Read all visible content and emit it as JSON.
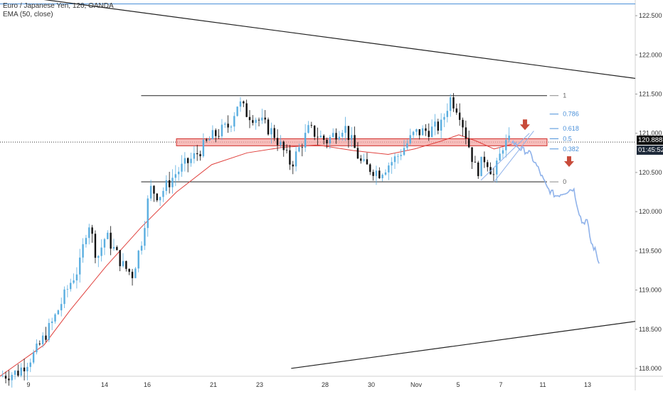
{
  "legend": {
    "symbol": "Euro / Japanese Yen, 120, OANDA",
    "indicator": "EMA (50, close)"
  },
  "price_tag": {
    "last": "120.888",
    "countdown": "01:45:52",
    "last_value": 120.888
  },
  "colors": {
    "up_candle": "#5aaee0",
    "down_candle": "#111111",
    "ema": "#e0413d",
    "projection": "#8fb2ea",
    "zone_fill": "#f4a5a3",
    "zone_border": "#d1302d",
    "arrow": "#c84b3a",
    "fib": "#4a90d9",
    "tag_bg": "#111111",
    "countdown_bg": "#1e2a3a"
  },
  "chart_data": {
    "type": "candlestick",
    "title": "Euro / Japanese Yen, 120, OANDA",
    "ylim": [
      117.9,
      122.7
    ],
    "x_tick_labels": [
      "9",
      "14",
      "16",
      "21",
      "23",
      "28",
      "30",
      "Nov",
      "5",
      "7",
      "11",
      "13"
    ],
    "y_ticks": [
      118.0,
      118.5,
      119.0,
      119.5,
      120.0,
      120.5,
      121.0,
      121.5,
      122.0,
      122.5
    ],
    "y_tick_labels": [
      "118.000",
      "118.500",
      "119.000",
      "119.500",
      "120.000",
      "120.500",
      "121.000",
      "121.500",
      "122.000",
      "122.500"
    ],
    "price_path": [
      [
        0,
        117.9
      ],
      [
        2,
        117.95
      ],
      [
        4,
        118.2
      ],
      [
        6,
        118.6
      ],
      [
        8,
        119.1
      ],
      [
        9,
        119.3
      ],
      [
        10,
        119.9
      ],
      [
        11,
        119.4
      ],
      [
        12,
        119.7
      ],
      [
        14,
        119.3
      ],
      [
        15,
        119.2
      ],
      [
        16,
        119.6
      ],
      [
        17,
        120.3
      ],
      [
        18,
        120.2
      ],
      [
        20,
        120.5
      ],
      [
        22,
        120.7
      ],
      [
        24,
        120.95
      ],
      [
        26,
        121.1
      ],
      [
        27,
        121.4
      ],
      [
        28,
        121.25
      ],
      [
        29,
        121.2
      ],
      [
        31,
        121.0
      ],
      [
        33,
        120.6
      ],
      [
        35,
        121.05
      ],
      [
        37,
        120.9
      ],
      [
        39,
        121.1
      ],
      [
        41,
        120.6
      ],
      [
        43,
        120.5
      ],
      [
        45,
        120.7
      ],
      [
        47,
        121.0
      ],
      [
        49,
        121.05
      ],
      [
        50,
        121.1
      ],
      [
        51,
        121.45
      ],
      [
        52,
        121.3
      ],
      [
        53,
        120.9
      ],
      [
        54,
        120.5
      ],
      [
        55,
        120.7
      ],
      [
        56,
        120.45
      ],
      [
        57,
        120.85
      ],
      [
        58,
        120.9
      ]
    ],
    "ema_50": [
      [
        0,
        117.9
      ],
      [
        5,
        118.3
      ],
      [
        8,
        118.75
      ],
      [
        12,
        119.3
      ],
      [
        16,
        119.8
      ],
      [
        20,
        120.25
      ],
      [
        24,
        120.6
      ],
      [
        28,
        120.75
      ],
      [
        32,
        120.82
      ],
      [
        36,
        120.85
      ],
      [
        40,
        120.78
      ],
      [
        44,
        120.73
      ],
      [
        47,
        120.8
      ],
      [
        50,
        120.9
      ],
      [
        52,
        120.98
      ],
      [
        54,
        120.9
      ],
      [
        56,
        120.8
      ],
      [
        58,
        120.86
      ]
    ],
    "projection_path": [
      [
        58,
        120.9
      ],
      [
        59,
        120.8
      ],
      [
        60,
        120.75
      ],
      [
        61,
        120.55
      ],
      [
        62,
        120.3
      ],
      [
        63,
        120.2
      ],
      [
        64,
        120.25
      ],
      [
        65,
        120.3
      ],
      [
        65.5,
        120.05
      ],
      [
        66,
        119.85
      ],
      [
        66.5,
        119.9
      ],
      [
        67,
        119.6
      ],
      [
        67.5,
        119.5
      ],
      [
        68,
        119.3
      ]
    ],
    "horizontal_levels": [
      {
        "value": 121.48,
        "x_start": 16,
        "x_end": 62
      },
      {
        "value": 120.38,
        "x_start": 16,
        "x_end": 62
      }
    ],
    "resistance_zone": {
      "low": 120.84,
      "high": 120.93,
      "x_start": 20,
      "x_end": 62
    },
    "current_price_line": 120.888,
    "top_line": 122.65,
    "fibonacci": {
      "from": 120.38,
      "to": 121.48,
      "levels": [
        {
          "ratio": 1,
          "label": "1"
        },
        {
          "ratio": 0.786,
          "label": "0.786"
        },
        {
          "ratio": 0.618,
          "label": "0.618"
        },
        {
          "ratio": 0.5,
          "label": "0.5"
        },
        {
          "ratio": 0.382,
          "label": "0.382"
        },
        {
          "ratio": 0,
          "label": "0"
        }
      ]
    },
    "trendlines": [
      {
        "from": [
          0,
          122.78
        ],
        "to": [
          72,
          121.7
        ]
      },
      {
        "from": [
          33,
          118.0
        ],
        "to": [
          72,
          118.6
        ]
      }
    ],
    "wedge_lines": [
      {
        "from": [
          54.5,
          120.4
        ],
        "to": [
          60,
          121.0
        ]
      },
      {
        "from": [
          56,
          120.38
        ],
        "to": [
          60.5,
          121.03
        ]
      }
    ],
    "arrows": [
      {
        "x": 59.5,
        "y": 121.05
      },
      {
        "x": 64.5,
        "y": 120.58
      }
    ]
  }
}
